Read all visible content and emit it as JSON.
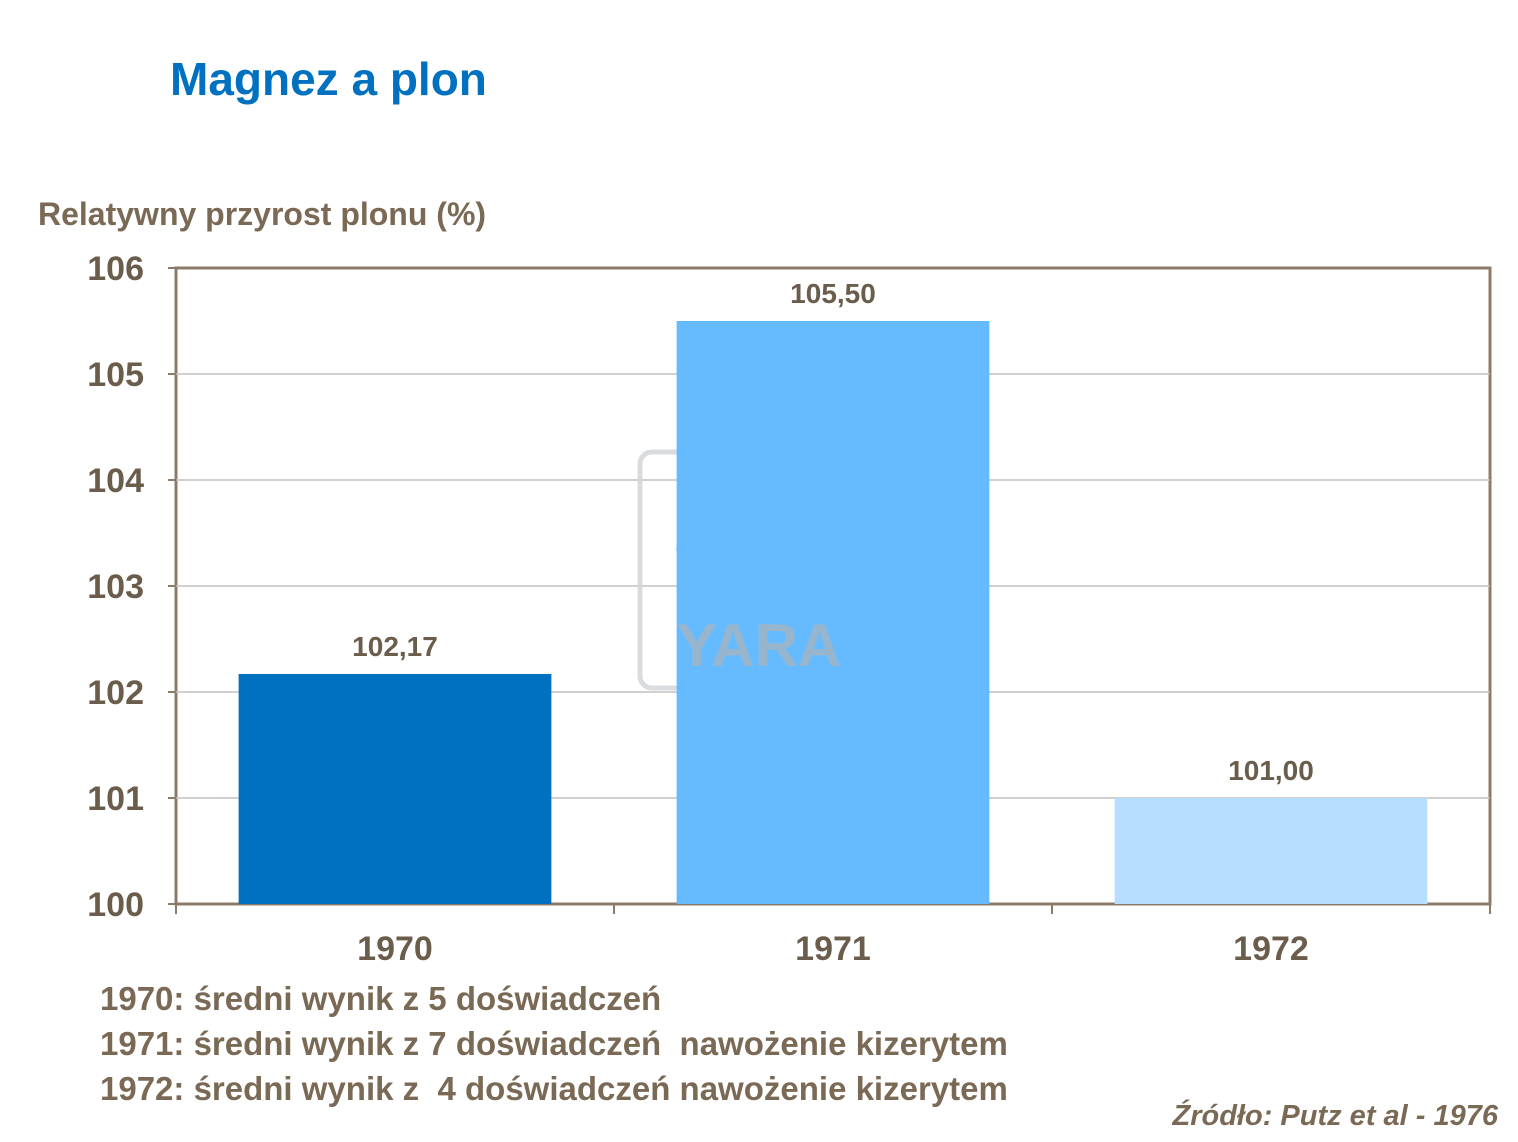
{
  "title": "Magnez a plon",
  "watermark": {
    "text": "YARA",
    "icon": "yara-viking-ship-logo"
  },
  "colors": {
    "title": "#0070C0",
    "text": "#7A6A55",
    "axis": "#8C7B68",
    "grid": "#C0C0C0"
  },
  "chart_data": {
    "type": "bar",
    "title": "",
    "ylabel": "Relatywny przyrost plonu (%)",
    "xlabel": "",
    "categories": [
      "1970",
      "1971",
      "1972"
    ],
    "values": [
      102.17,
      105.5,
      101.0
    ],
    "value_labels": [
      "102,17",
      "105,50",
      "101,00"
    ],
    "bar_colors": [
      "#0070C0",
      "#66BBFF",
      "#B8DEFF"
    ],
    "ylim": [
      100,
      106
    ],
    "yticks": [
      100,
      101,
      102,
      103,
      104,
      105,
      106
    ],
    "grid": true,
    "legend": "none"
  },
  "notes": [
    "1970: średni wynik z 5 doświadczeń",
    "1971: średni wynik z 7 doświadczeń  nawożenie kizerytem",
    "1972: średni wynik z  4 doświadczeń nawożenie kizerytem"
  ],
  "source": "Źródło: Putz et al - 1976"
}
